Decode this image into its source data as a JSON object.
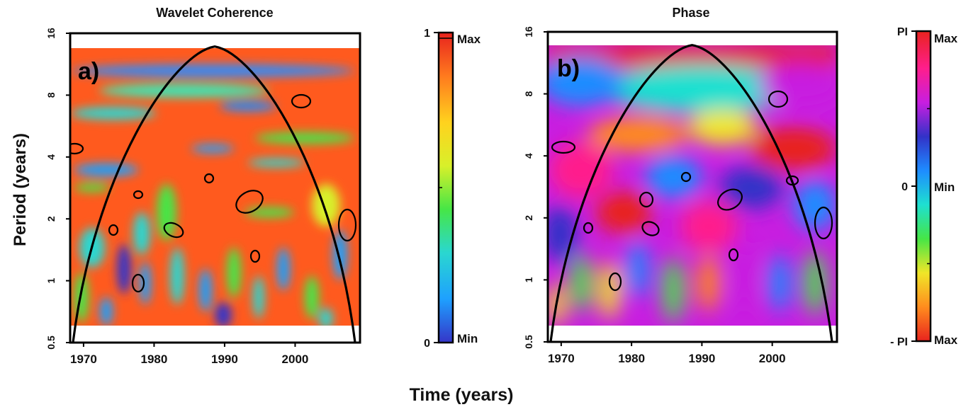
{
  "figure": {
    "ylabel": "Period (years)",
    "xlabel": "Time (years)"
  },
  "chart_data": [
    {
      "id": "a",
      "type": "heatmap",
      "title": "Wavelet Coherence",
      "panel_label": "a)",
      "x_ticks": [
        1970,
        1980,
        1990,
        2000
      ],
      "y_ticks": [
        0.5,
        1,
        2,
        4,
        8,
        16
      ],
      "y_tick_labels": [
        "0.5",
        "1",
        "2",
        "4",
        "8",
        "16"
      ],
      "y_scale": "log2",
      "xlim": [
        1968.1,
        2009.2
      ],
      "ylim": [
        0.5,
        16
      ],
      "data_ylim": [
        0.6,
        12.8
      ],
      "cone_of_influence": {
        "x": [
          1968.5,
          1988.6,
          2008.5
        ],
        "peak_period": 13.8
      },
      "colorbar": {
        "ticks": [
          {
            "value": 0,
            "label": "0"
          },
          {
            "value": 1,
            "label": "1"
          }
        ],
        "min_label": "Min",
        "max_label": "Max",
        "colors": [
          "#3535c8",
          "#1ea0ff",
          "#2ad7d0",
          "#46e646",
          "#d8f02a",
          "#ffd21e",
          "#ff7a1e",
          "#e8231e"
        ]
      }
    },
    {
      "id": "b",
      "type": "heatmap",
      "title": "Phase",
      "panel_label": "b)",
      "x_ticks": [
        1970,
        1980,
        1990,
        2000
      ],
      "y_ticks": [
        0.5,
        1,
        2,
        4,
        8,
        16
      ],
      "y_tick_labels": [
        "0.5",
        "1",
        "2",
        "4",
        "8",
        "16"
      ],
      "y_scale": "log2",
      "xlim": [
        1968.1,
        2009.2
      ],
      "ylim": [
        0.5,
        16
      ],
      "data_ylim": [
        0.6,
        12.8
      ],
      "cone_of_influence": {
        "x": [
          1968.5,
          1988.6,
          2008.5
        ],
        "peak_period": 13.8
      },
      "colorbar": {
        "ticks": [
          {
            "value": 3.1416,
            "label": "PI"
          },
          {
            "value": 0,
            "label": "0"
          },
          {
            "value": -3.1416,
            "label": "- PI"
          }
        ],
        "top_label": "Max",
        "mid_label": "Min",
        "bottom_label": "Max",
        "colors": [
          "#e8231e",
          "#ff8c1e",
          "#f0e628",
          "#46e646",
          "#1ee0d0",
          "#1e8cff",
          "#3232c8",
          "#c81ee0",
          "#ff1e8c",
          "#e8231e"
        ]
      }
    }
  ]
}
